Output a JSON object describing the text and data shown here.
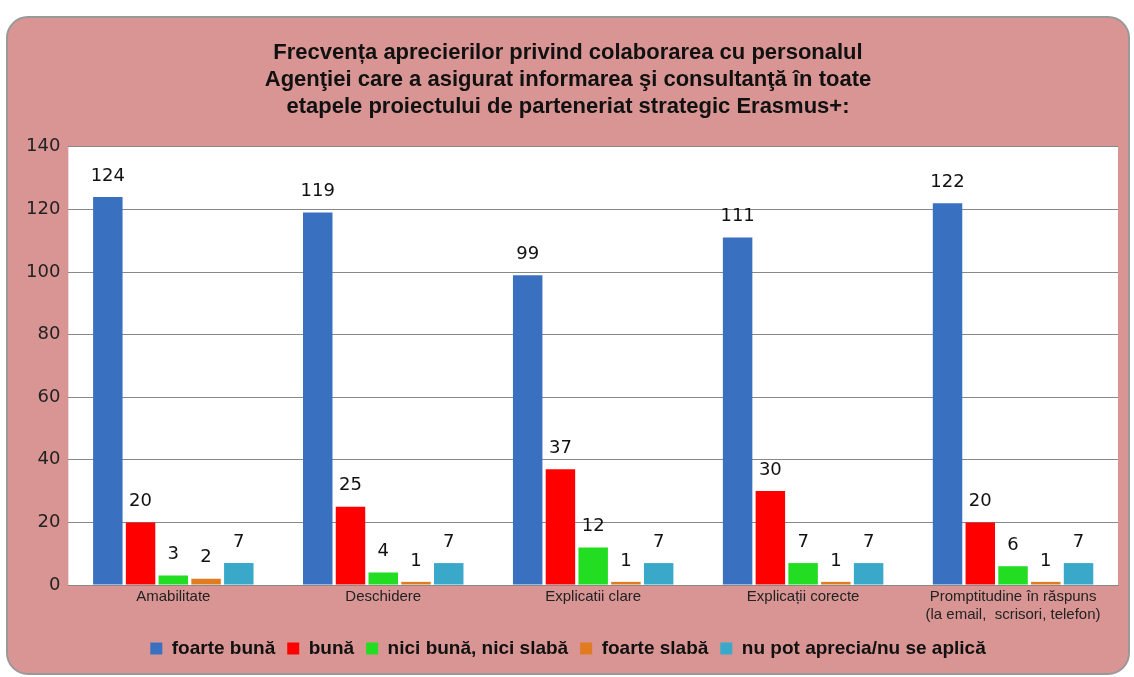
{
  "chart_data": {
    "type": "bar",
    "title": "Frecvența aprecierilor privind colaborarea cu personalul\nAgenţiei care a asigurat informarea şi consultanţă în toate\netapele proiectului de parteneriat strategic Erasmus+:",
    "categories": [
      "Amabilitate",
      "Deschidere",
      "Explicatii clare",
      "Explicații corecte",
      "Promptitudine în răspuns\n(la email,  scrisori, telefon)"
    ],
    "series": [
      {
        "name": "foarte bună",
        "color": "#3a70c0",
        "values": [
          124,
          119,
          99,
          111,
          122
        ]
      },
      {
        "name": "bună",
        "color": "#ff0000",
        "values": [
          20,
          25,
          37,
          30,
          20
        ]
      },
      {
        "name": "nici bună, nici slabă",
        "color": "#22dd22",
        "values": [
          3,
          4,
          12,
          7,
          6
        ]
      },
      {
        "name": "foarte slabă",
        "color": "#e07b20",
        "values": [
          2,
          1,
          1,
          1,
          1
        ]
      },
      {
        "name": "nu pot aprecia/nu se aplică",
        "color": "#3aa8c8",
        "values": [
          7,
          7,
          7,
          7,
          7
        ]
      }
    ],
    "ylim": [
      0,
      140
    ],
    "yticks": [
      0,
      20,
      40,
      60,
      80,
      100,
      120,
      140
    ],
    "grid": "y",
    "legend": "bottom",
    "data_labels": true
  }
}
